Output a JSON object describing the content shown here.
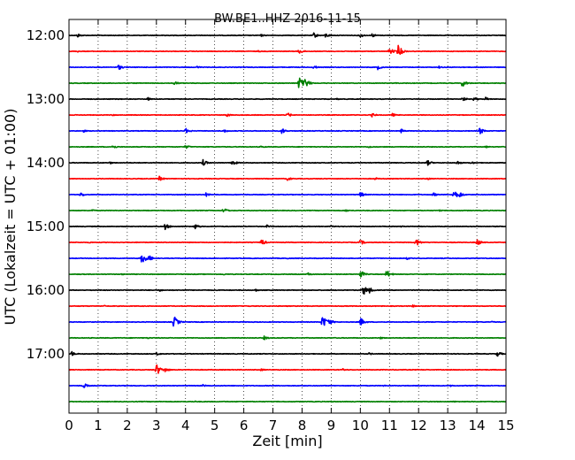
{
  "chart_data": {
    "type": "line",
    "title": "BW.BE1..HHZ 2016-11-15",
    "xlabel": "Zeit  [min]",
    "ylabel": "UTC (Lokalzeit = UTC + 01:00)",
    "xlim": [
      0,
      15
    ],
    "x_ticks": [
      0,
      1,
      2,
      3,
      4,
      5,
      6,
      7,
      8,
      9,
      10,
      11,
      12,
      13,
      14,
      15
    ],
    "x_tick_labels": [
      "0",
      "1",
      "2",
      "3",
      "4",
      "5",
      "6",
      "7",
      "8",
      "9",
      "10",
      "11",
      "12",
      "13",
      "14",
      "15"
    ],
    "y_tick_labels": [
      "12:00",
      "13:00",
      "14:00",
      "15:00",
      "16:00",
      "17:00"
    ],
    "grid": "vertical dotted",
    "trace_colors": [
      "#000000",
      "#ff0000",
      "#0000ff",
      "#008000"
    ],
    "traces": [
      {
        "start": "12:00",
        "events": [
          [
            0.3,
            0.25
          ],
          [
            8.4,
            0.35
          ],
          [
            8.8,
            0.3
          ],
          [
            10.0,
            0.25
          ],
          [
            10.4,
            0.25
          ],
          [
            6.6,
            0.15
          ],
          [
            3.3,
            0.1
          ]
        ]
      },
      {
        "start": "12:15",
        "events": [
          [
            7.9,
            0.35
          ],
          [
            11.0,
            0.45
          ],
          [
            11.3,
            0.8
          ],
          [
            6.5,
            0.1
          ],
          [
            0.3,
            0.1
          ]
        ]
      },
      {
        "start": "12:30",
        "events": [
          [
            1.7,
            0.35
          ],
          [
            8.4,
            0.25
          ],
          [
            10.6,
            0.3
          ],
          [
            4.4,
            0.15
          ],
          [
            12.7,
            0.15
          ]
        ]
      },
      {
        "start": "12:45",
        "events": [
          [
            3.6,
            0.3
          ],
          [
            7.9,
            0.9
          ],
          [
            8.1,
            0.7
          ],
          [
            13.5,
            0.5
          ],
          [
            11.2,
            0.1
          ]
        ]
      },
      {
        "start": "13:00",
        "events": [
          [
            2.7,
            0.2
          ],
          [
            13.5,
            0.3
          ],
          [
            13.9,
            0.25
          ],
          [
            14.3,
            0.25
          ],
          [
            9.2,
            0.1
          ]
        ]
      },
      {
        "start": "13:15",
        "events": [
          [
            5.4,
            0.25
          ],
          [
            7.5,
            0.3
          ],
          [
            10.4,
            0.25
          ],
          [
            11.1,
            0.2
          ],
          [
            1.5,
            0.1
          ]
        ]
      },
      {
        "start": "13:30",
        "events": [
          [
            4.0,
            0.35
          ],
          [
            5.3,
            0.25
          ],
          [
            7.3,
            0.4
          ],
          [
            11.4,
            0.25
          ],
          [
            14.1,
            0.45
          ],
          [
            0.5,
            0.15
          ]
        ]
      },
      {
        "start": "13:45",
        "events": [
          [
            1.5,
            0.25
          ],
          [
            4.0,
            0.25
          ],
          [
            6.6,
            0.15
          ],
          [
            10.3,
            0.15
          ],
          [
            14.3,
            0.15
          ]
        ]
      },
      {
        "start": "14:00",
        "events": [
          [
            4.6,
            0.4
          ],
          [
            5.6,
            0.4
          ],
          [
            12.3,
            0.35
          ],
          [
            13.3,
            0.3
          ],
          [
            13.8,
            0.2
          ],
          [
            1.4,
            0.15
          ]
        ]
      },
      {
        "start": "14:15",
        "events": [
          [
            3.1,
            0.3
          ],
          [
            7.5,
            0.25
          ],
          [
            12.3,
            0.15
          ],
          [
            10.5,
            0.15
          ]
        ]
      },
      {
        "start": "14:30",
        "events": [
          [
            0.4,
            0.3
          ],
          [
            4.7,
            0.25
          ],
          [
            10.0,
            0.35
          ],
          [
            12.5,
            0.25
          ],
          [
            13.2,
            0.7
          ],
          [
            13.4,
            0.4
          ]
        ]
      },
      {
        "start": "14:45",
        "events": [
          [
            5.3,
            0.35
          ],
          [
            0.8,
            0.15
          ],
          [
            9.5,
            0.15
          ],
          [
            12.7,
            0.1
          ]
        ]
      },
      {
        "start": "15:00",
        "events": [
          [
            3.3,
            0.4
          ],
          [
            4.3,
            0.4
          ],
          [
            6.8,
            0.2
          ],
          [
            9.0,
            0.15
          ],
          [
            11.4,
            0.15
          ]
        ]
      },
      {
        "start": "15:15",
        "events": [
          [
            6.6,
            0.45
          ],
          [
            10.0,
            0.35
          ],
          [
            11.9,
            0.55
          ],
          [
            14.0,
            0.45
          ],
          [
            0.7,
            0.1
          ]
        ]
      },
      {
        "start": "15:30",
        "events": [
          [
            2.5,
            0.8
          ],
          [
            2.7,
            0.55
          ],
          [
            7.5,
            0.1
          ],
          [
            11.6,
            0.15
          ]
        ]
      },
      {
        "start": "15:45",
        "events": [
          [
            8.2,
            0.2
          ],
          [
            10.0,
            0.5
          ],
          [
            10.9,
            0.55
          ],
          [
            5.3,
            0.1
          ],
          [
            1.8,
            0.1
          ]
        ]
      },
      {
        "start": "16:00",
        "events": [
          [
            10.1,
            0.7
          ],
          [
            10.3,
            0.4
          ],
          [
            3.1,
            0.15
          ],
          [
            6.4,
            0.15
          ],
          [
            12.8,
            0.1
          ]
        ]
      },
      {
        "start": "16:15",
        "events": [
          [
            6.1,
            0.1
          ],
          [
            11.8,
            0.15
          ],
          [
            1.2,
            0.1
          ]
        ]
      },
      {
        "start": "16:30",
        "events": [
          [
            3.6,
            0.8
          ],
          [
            8.7,
            0.9
          ],
          [
            8.9,
            0.5
          ],
          [
            10.0,
            0.55
          ],
          [
            14.5,
            0.1
          ]
        ]
      },
      {
        "start": "16:45",
        "events": [
          [
            6.7,
            0.25
          ],
          [
            10.7,
            0.15
          ],
          [
            2.7,
            0.1
          ]
        ]
      },
      {
        "start": "17:00",
        "events": [
          [
            0.1,
            0.3
          ],
          [
            14.7,
            0.35
          ],
          [
            3.0,
            0.2
          ],
          [
            10.3,
            0.15
          ]
        ]
      },
      {
        "start": "17:15",
        "events": [
          [
            3.0,
            0.8
          ],
          [
            3.3,
            0.3
          ],
          [
            6.6,
            0.15
          ],
          [
            9.4,
            0.15
          ]
        ]
      },
      {
        "start": "17:30",
        "events": [
          [
            0.5,
            0.35
          ],
          [
            4.6,
            0.15
          ],
          [
            10.8,
            0.1
          ],
          [
            13.1,
            0.1
          ]
        ]
      },
      {
        "start": "17:45",
        "events": [
          [
            4.3,
            0.1
          ],
          [
            9.0,
            0.1
          ],
          [
            13.2,
            0.1
          ]
        ]
      }
    ]
  }
}
